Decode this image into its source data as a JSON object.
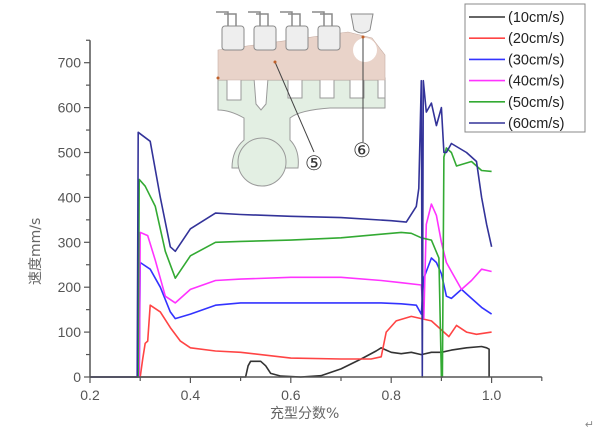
{
  "chart_data": {
    "type": "line",
    "title": "",
    "xlabel": "充型分数%",
    "ylabel": "速度mm/s",
    "xlim": [
      0.2,
      1.1
    ],
    "ylim": [
      0,
      750
    ],
    "xticks": [
      0.2,
      0.4,
      0.6,
      0.8,
      1.0
    ],
    "xtick_labels": [
      "0.2",
      "0.4",
      "0.6",
      "0.8",
      "1.0"
    ],
    "yticks": [
      0,
      100,
      200,
      300,
      400,
      500,
      600,
      700
    ],
    "ytick_labels": [
      "0",
      "100",
      "200",
      "300",
      "400",
      "500",
      "600",
      "700"
    ],
    "grid": false,
    "legend_position": "top-right",
    "series": [
      {
        "name": "(10cm/s)",
        "color": "#333333",
        "points": [
          [
            0.2,
            0
          ],
          [
            0.51,
            0
          ],
          [
            0.515,
            25
          ],
          [
            0.52,
            35
          ],
          [
            0.54,
            35
          ],
          [
            0.55,
            25
          ],
          [
            0.56,
            8
          ],
          [
            0.58,
            2
          ],
          [
            0.62,
            0
          ],
          [
            0.66,
            3
          ],
          [
            0.7,
            18
          ],
          [
            0.74,
            40
          ],
          [
            0.77,
            58
          ],
          [
            0.78,
            65
          ],
          [
            0.79,
            60
          ],
          [
            0.8,
            55
          ],
          [
            0.82,
            52
          ],
          [
            0.84,
            55
          ],
          [
            0.86,
            50
          ],
          [
            0.88,
            55
          ],
          [
            0.9,
            55
          ],
          [
            0.92,
            60
          ],
          [
            0.95,
            65
          ],
          [
            0.98,
            68
          ],
          [
            0.99,
            65
          ],
          [
            0.995,
            62
          ],
          [
            0.995,
            0
          ]
        ]
      },
      {
        "name": "(20cm/s)",
        "color": "#ff4444",
        "points": [
          [
            0.2,
            0
          ],
          [
            0.3,
            0
          ],
          [
            0.305,
            40
          ],
          [
            0.31,
            75
          ],
          [
            0.315,
            80
          ],
          [
            0.32,
            160
          ],
          [
            0.34,
            145
          ],
          [
            0.36,
            110
          ],
          [
            0.38,
            80
          ],
          [
            0.4,
            65
          ],
          [
            0.45,
            58
          ],
          [
            0.5,
            55
          ],
          [
            0.6,
            42
          ],
          [
            0.7,
            40
          ],
          [
            0.76,
            40
          ],
          [
            0.78,
            45
          ],
          [
            0.79,
            100
          ],
          [
            0.81,
            125
          ],
          [
            0.84,
            135
          ],
          [
            0.86,
            130
          ],
          [
            0.88,
            125
          ],
          [
            0.9,
            105
          ],
          [
            0.915,
            90
          ],
          [
            0.93,
            115
          ],
          [
            0.95,
            100
          ],
          [
            0.97,
            95
          ],
          [
            1.0,
            100
          ]
        ]
      },
      {
        "name": "(30cm/s)",
        "color": "#3333ff",
        "points": [
          [
            0.2,
            0
          ],
          [
            0.298,
            0
          ],
          [
            0.3,
            255
          ],
          [
            0.32,
            240
          ],
          [
            0.34,
            200
          ],
          [
            0.36,
            145
          ],
          [
            0.37,
            130
          ],
          [
            0.4,
            140
          ],
          [
            0.45,
            160
          ],
          [
            0.5,
            165
          ],
          [
            0.6,
            165
          ],
          [
            0.7,
            165
          ],
          [
            0.78,
            165
          ],
          [
            0.82,
            163
          ],
          [
            0.85,
            160
          ],
          [
            0.86,
            140
          ],
          [
            0.865,
            220
          ],
          [
            0.88,
            265
          ],
          [
            0.89,
            255
          ],
          [
            0.9,
            230
          ],
          [
            0.91,
            180
          ],
          [
            0.92,
            175
          ],
          [
            0.94,
            195
          ],
          [
            0.96,
            175
          ],
          [
            0.98,
            155
          ],
          [
            1.0,
            140
          ]
        ]
      },
      {
        "name": "(40cm/s)",
        "color": "#ff33ff",
        "points": [
          [
            0.2,
            0
          ],
          [
            0.298,
            0
          ],
          [
            0.3,
            322
          ],
          [
            0.315,
            315
          ],
          [
            0.33,
            260
          ],
          [
            0.35,
            180
          ],
          [
            0.37,
            165
          ],
          [
            0.4,
            195
          ],
          [
            0.45,
            215
          ],
          [
            0.5,
            218
          ],
          [
            0.6,
            222
          ],
          [
            0.7,
            222
          ],
          [
            0.78,
            215
          ],
          [
            0.82,
            210
          ],
          [
            0.86,
            205
          ],
          [
            0.865,
            130
          ],
          [
            0.87,
            340
          ],
          [
            0.88,
            385
          ],
          [
            0.89,
            360
          ],
          [
            0.9,
            300
          ],
          [
            0.91,
            255
          ],
          [
            0.92,
            235
          ],
          [
            0.94,
            195
          ],
          [
            0.96,
            215
          ],
          [
            0.98,
            240
          ],
          [
            1.0,
            235
          ]
        ]
      },
      {
        "name": "(50cm/s)",
        "color": "#33aa33",
        "points": [
          [
            0.2,
            0
          ],
          [
            0.296,
            0
          ],
          [
            0.298,
            440
          ],
          [
            0.31,
            425
          ],
          [
            0.33,
            380
          ],
          [
            0.35,
            280
          ],
          [
            0.37,
            220
          ],
          [
            0.4,
            270
          ],
          [
            0.45,
            300
          ],
          [
            0.5,
            302
          ],
          [
            0.6,
            305
          ],
          [
            0.7,
            310
          ],
          [
            0.78,
            318
          ],
          [
            0.82,
            322
          ],
          [
            0.84,
            320
          ],
          [
            0.86,
            310
          ],
          [
            0.88,
            305
          ],
          [
            0.895,
            265
          ],
          [
            0.9,
            0
          ],
          [
            0.902,
            0
          ],
          [
            0.905,
            490
          ],
          [
            0.91,
            510
          ],
          [
            0.92,
            500
          ],
          [
            0.93,
            470
          ],
          [
            0.96,
            480
          ],
          [
            0.98,
            460
          ],
          [
            1.0,
            458
          ]
        ]
      },
      {
        "name": "(60cm/s)",
        "color": "#333399",
        "points": [
          [
            0.2,
            0
          ],
          [
            0.294,
            0
          ],
          [
            0.296,
            545
          ],
          [
            0.32,
            525
          ],
          [
            0.34,
            400
          ],
          [
            0.36,
            290
          ],
          [
            0.37,
            280
          ],
          [
            0.4,
            330
          ],
          [
            0.45,
            365
          ],
          [
            0.5,
            362
          ],
          [
            0.6,
            358
          ],
          [
            0.7,
            355
          ],
          [
            0.8,
            348
          ],
          [
            0.83,
            345
          ],
          [
            0.85,
            380
          ],
          [
            0.855,
            420
          ],
          [
            0.86,
            660
          ],
          [
            0.862,
            0
          ],
          [
            0.864,
            660
          ],
          [
            0.87,
            590
          ],
          [
            0.88,
            610
          ],
          [
            0.89,
            560
          ],
          [
            0.9,
            600
          ],
          [
            0.905,
            500
          ],
          [
            0.91,
            500
          ],
          [
            0.92,
            520
          ],
          [
            0.95,
            500
          ],
          [
            0.97,
            480
          ],
          [
            0.98,
            400
          ],
          [
            0.99,
            340
          ],
          [
            1.0,
            290
          ]
        ]
      }
    ]
  },
  "inset_diagram": {
    "labels": [
      "⑤",
      "⑥"
    ]
  },
  "return_mark": "↵"
}
